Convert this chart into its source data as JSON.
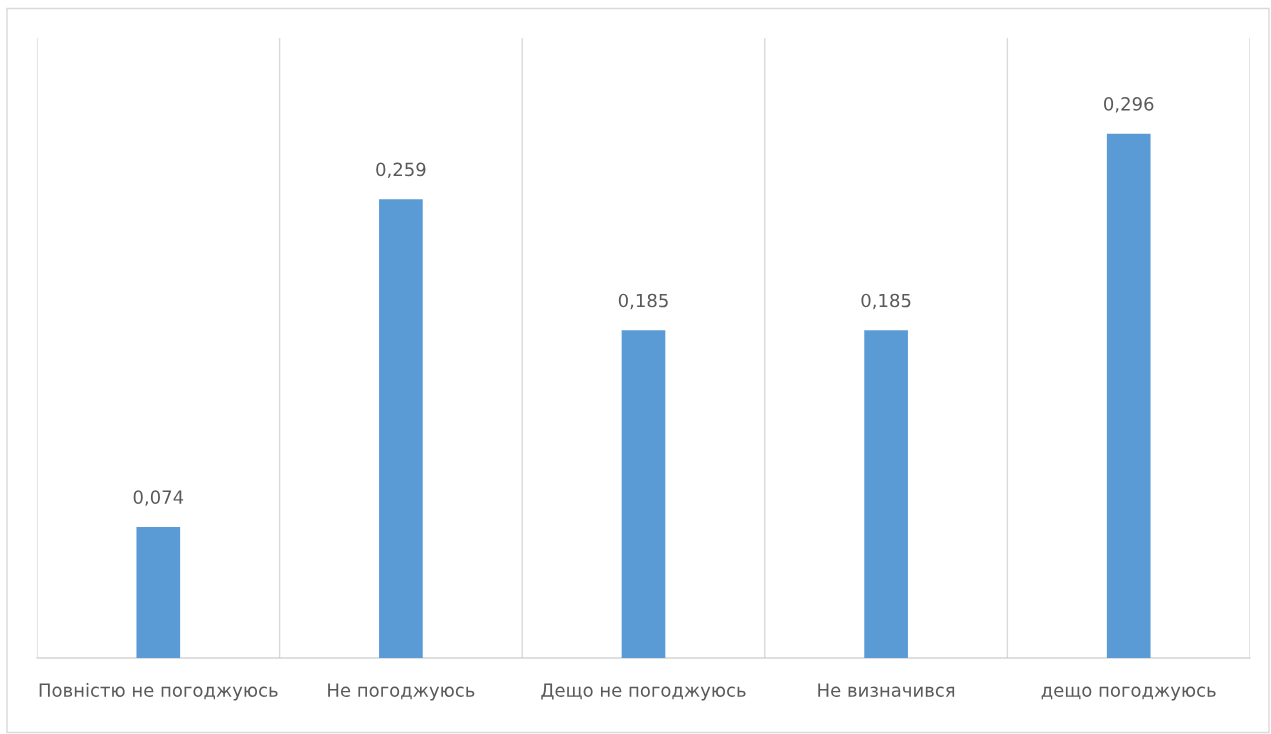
{
  "chart_data": {
    "type": "bar",
    "categories": [
      "Повністю не погоджуюсь",
      "Не погоджуюсь",
      "Дещо не погоджуюсь",
      "Не визначився",
      "дещо погоджуюсь"
    ],
    "values": [
      0.074,
      0.259,
      0.185,
      0.185,
      0.296
    ],
    "value_labels": [
      "0,074",
      "0,259",
      "0,185",
      "0,185",
      "0,296"
    ],
    "color": "#5b9bd5",
    "ylim": [
      0,
      0.35
    ],
    "tick_labels": "x",
    "grid": "x",
    "legend": false
  }
}
